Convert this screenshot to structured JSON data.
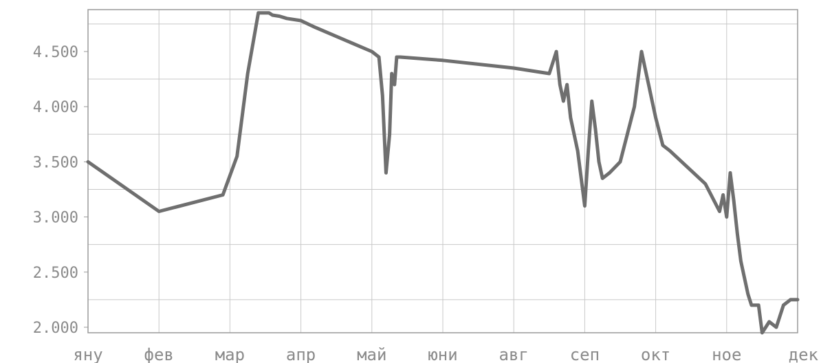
{
  "chart_data": {
    "type": "line",
    "title": "",
    "xlabel": "",
    "ylabel": "",
    "x_ticks": [
      "яну",
      "фев",
      "мар",
      "апр",
      "май",
      "юни",
      "авг",
      "сеп",
      "окт",
      "ное",
      "дек"
    ],
    "y_ticks": [
      "4.500",
      "4.000",
      "3.500",
      "3.000",
      "2.500",
      "2.000"
    ],
    "y_tick_values": [
      4.5,
      4.0,
      3.5,
      3.0,
      2.5,
      2.0
    ],
    "xlim": [
      0,
      10
    ],
    "ylim": [
      1.95,
      4.88
    ],
    "grid": true,
    "legend": "none",
    "colors": {
      "line": "#6f6f6f",
      "grid": "#c8c8c8",
      "axis": "#999999",
      "tick_text": "#8a8a8a"
    },
    "series": [
      {
        "x": [
          0.0,
          1.0,
          1.9,
          2.1,
          2.25,
          2.4,
          2.55,
          2.6,
          2.7,
          2.8,
          3.0,
          3.2,
          4.0,
          4.1,
          4.15,
          4.2,
          4.25,
          4.28,
          4.32,
          4.35,
          4.4,
          5.0,
          6.0,
          6.5,
          6.55,
          6.6,
          6.65,
          6.7,
          6.75,
          6.8,
          6.9,
          7.0,
          7.05,
          7.1,
          7.15,
          7.2,
          7.25,
          7.35,
          7.5,
          7.7,
          7.8,
          7.85,
          7.9,
          7.95,
          8.0,
          8.1,
          8.2,
          8.7,
          8.9,
          8.95,
          9.0,
          9.05,
          9.1,
          9.15,
          9.2,
          9.25,
          9.3,
          9.35,
          9.45,
          9.5,
          9.55,
          9.6,
          9.7,
          9.8,
          9.9,
          10.0
        ],
        "y": [
          3.5,
          3.05,
          3.2,
          3.55,
          4.3,
          4.85,
          4.85,
          4.83,
          4.82,
          4.8,
          4.78,
          4.72,
          4.5,
          4.45,
          4.1,
          3.4,
          3.75,
          4.3,
          4.2,
          4.45,
          4.45,
          4.42,
          4.35,
          4.3,
          4.4,
          4.5,
          4.2,
          4.05,
          4.2,
          3.9,
          3.6,
          3.1,
          3.6,
          4.05,
          3.8,
          3.5,
          3.35,
          3.4,
          3.5,
          4.0,
          4.5,
          4.35,
          4.2,
          4.05,
          3.9,
          3.65,
          3.6,
          3.3,
          3.05,
          3.2,
          3.0,
          3.4,
          3.15,
          2.85,
          2.6,
          2.45,
          2.3,
          2.2,
          2.2,
          1.95,
          2.0,
          2.05,
          2.0,
          2.2,
          2.25,
          2.25
        ]
      }
    ]
  }
}
